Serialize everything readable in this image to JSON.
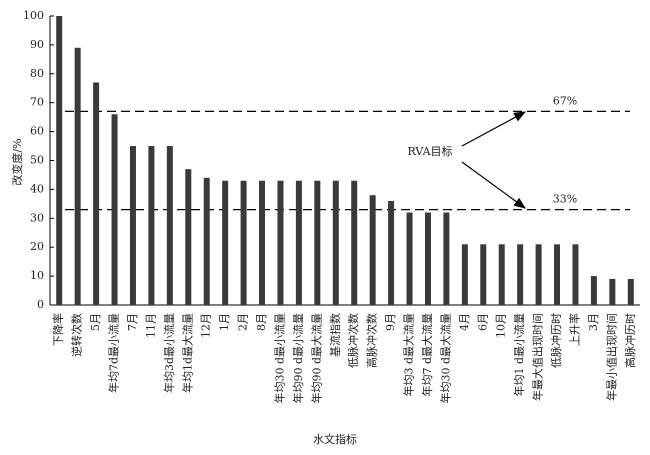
{
  "chart_data": {
    "type": "bar",
    "x_label": "水文指标",
    "y_label": "改变度/%",
    "categories": [
      "下降率",
      "逆转次数",
      "5月",
      "年均7d最小流量",
      "7月",
      "11月",
      "年均3d最小流量",
      "年均1d最大流量",
      "12月",
      "1月",
      "2月",
      "8月",
      "年均30 d最小流量",
      "年均90 d最小流量",
      "年均90 d最大流量",
      "基流指数",
      "低脉冲次数",
      "高脉冲次数",
      "9月",
      "年均3 d最大流量",
      "年均7 d最大流量",
      "年均30 d最大流量",
      "4月",
      "6月",
      "10月",
      "年均1 d最小流量",
      "年最大值出现时间",
      "低脉冲历时",
      "上升率",
      "3月",
      "年最小值出现时间",
      "高脉冲历时"
    ],
    "values": [
      100,
      89,
      77,
      66,
      55,
      55,
      55,
      47,
      44,
      43,
      43,
      43,
      43,
      43,
      43,
      43,
      43,
      38,
      36,
      32,
      32,
      32,
      21,
      21,
      21,
      21,
      21,
      21,
      21,
      10,
      9,
      9
    ],
    "color": "#3a3a3a",
    "ylim": [
      0,
      100
    ],
    "yticks": [
      0,
      10,
      20,
      30,
      40,
      50,
      60,
      70,
      80,
      90,
      100
    ],
    "reference_lines": [
      {
        "value": 67,
        "label": "67%"
      },
      {
        "value": 33,
        "label": "33%"
      }
    ],
    "annotation": "RVA目标"
  }
}
